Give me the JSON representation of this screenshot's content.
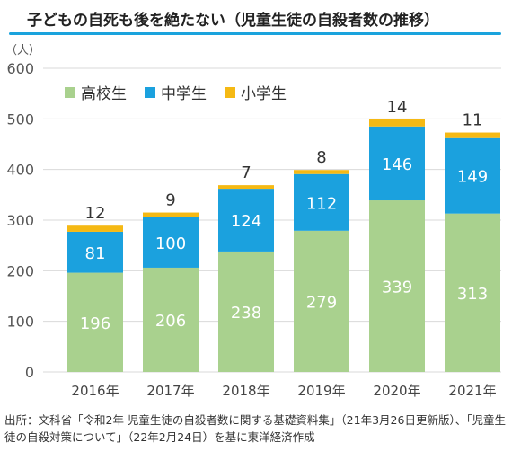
{
  "title": "子どもの自死も後を絶たない（児童生徒の自殺者数の推移）",
  "source": "出所：文科省「令和2年 児童生徒の自殺者数に関する基礎資料集」（21年3月26日更新版）、「児童生徒の自殺対策について」（22年2月24日）を基に東洋経済作成",
  "chart_data": {
    "type": "bar",
    "stacked": true,
    "unit_label": "（人）",
    "categories": [
      "2016年",
      "2017年",
      "2018年",
      "2019年",
      "2020年",
      "2021年"
    ],
    "series": [
      {
        "name": "高校生",
        "color": "#a9d18e",
        "values": [
          196,
          206,
          238,
          279,
          339,
          313
        ]
      },
      {
        "name": "中学生",
        "color": "#1ba1de",
        "values": [
          81,
          100,
          124,
          112,
          146,
          149
        ]
      },
      {
        "name": "小学生",
        "color": "#f5b914",
        "values": [
          12,
          9,
          7,
          8,
          14,
          11
        ]
      }
    ],
    "ylim": [
      0,
      600
    ],
    "yticks": [
      0,
      100,
      200,
      300,
      400,
      500,
      600
    ],
    "grid": true,
    "legend_position": "top-left"
  }
}
